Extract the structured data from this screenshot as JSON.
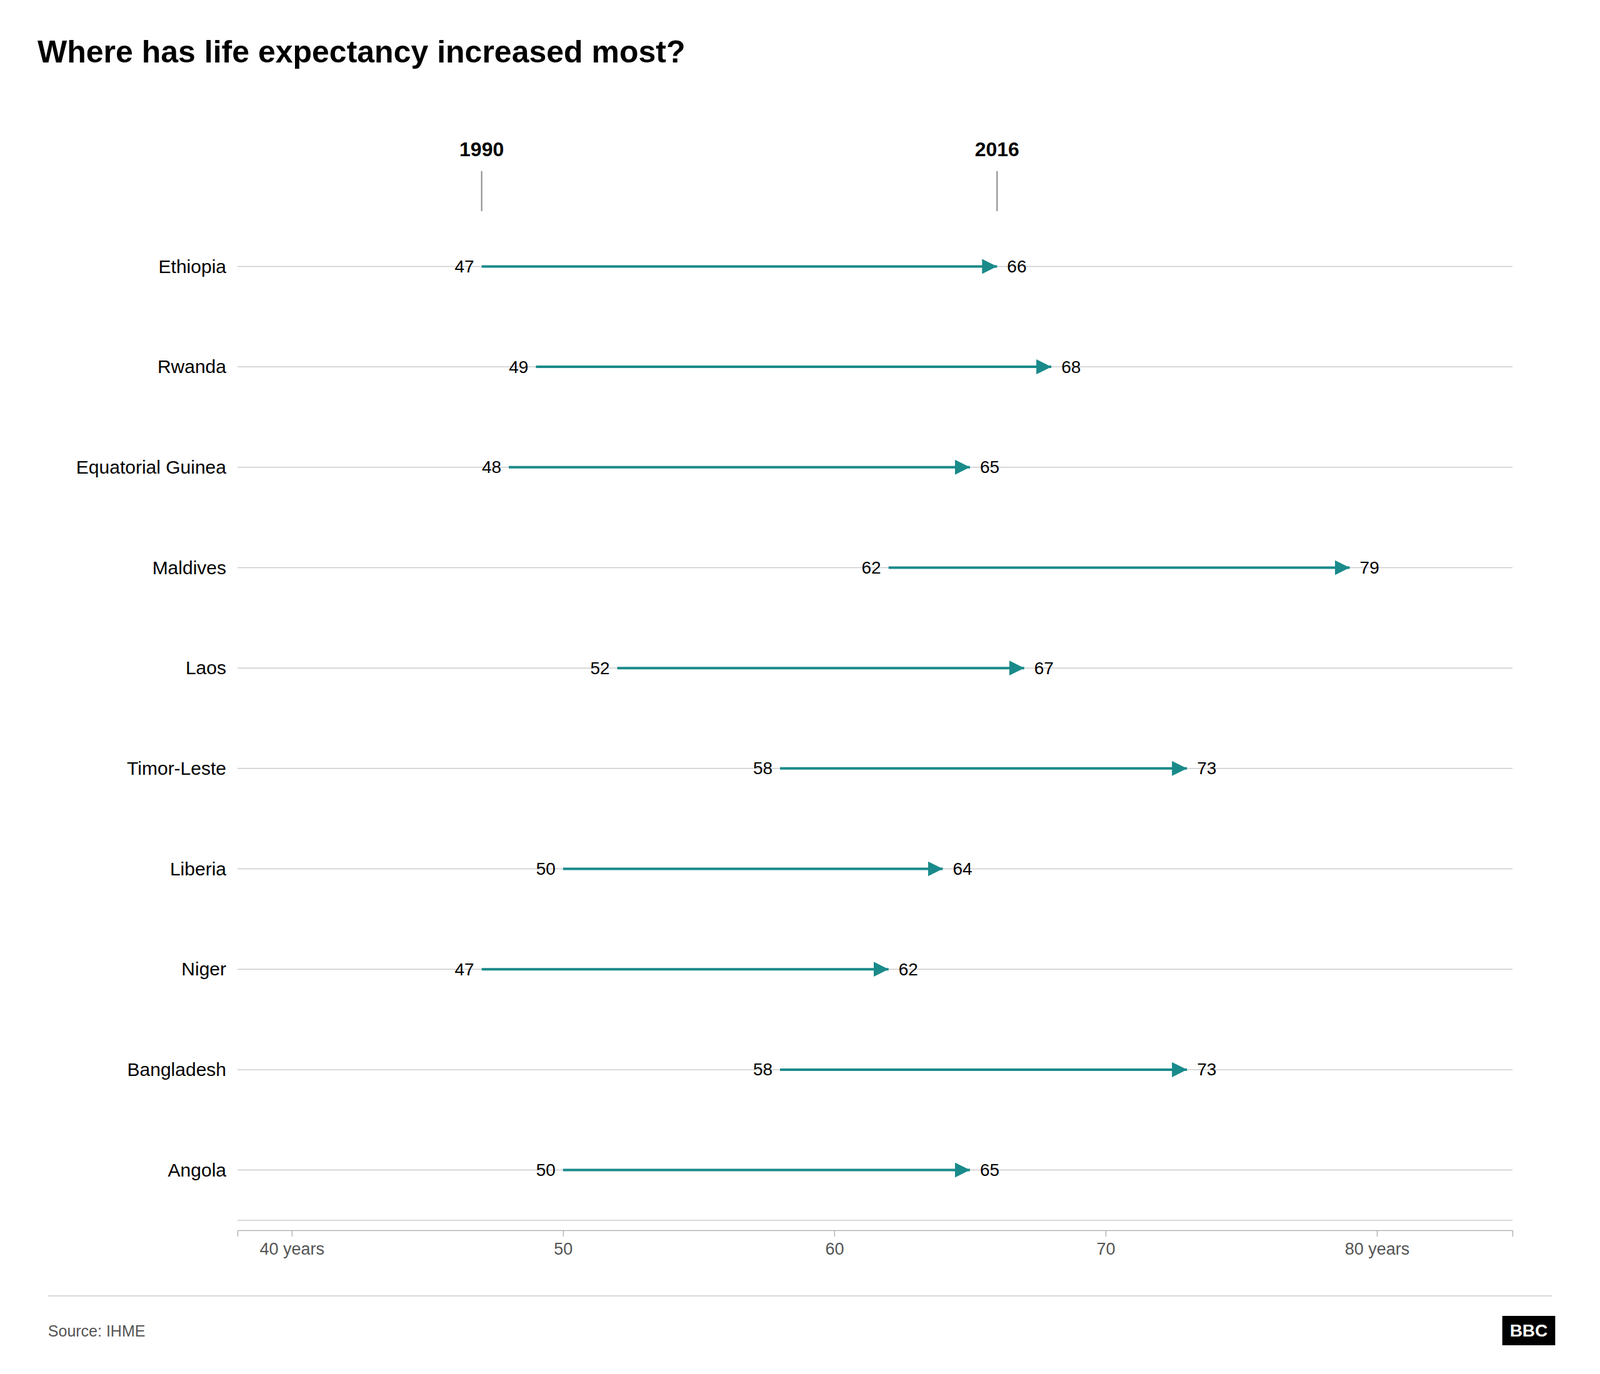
{
  "chart_data": {
    "type": "arrow",
    "title": "Where has life expectancy increased most?",
    "categories": [
      "Ethiopia",
      "Rwanda",
      "Equatorial Guinea",
      "Maldives",
      "Laos",
      "Timor-Leste",
      "Liberia",
      "Niger",
      "Bangladesh",
      "Angola"
    ],
    "series": [
      {
        "name": "1990",
        "values": [
          47,
          49,
          48,
          62,
          52,
          58,
          50,
          47,
          58,
          50
        ]
      },
      {
        "name": "2016",
        "values": [
          66,
          68,
          65,
          79,
          67,
          73,
          64,
          62,
          73,
          65
        ]
      }
    ],
    "color": "#1a8a8a",
    "orientation": "horizontal",
    "xlim": [
      38,
      85
    ],
    "xticks": [
      {
        "value": 40,
        "label": "40 years"
      },
      50,
      60,
      70,
      {
        "value": 80,
        "label": "80 years"
      }
    ],
    "grid": true,
    "data_labels": true,
    "annotations": [
      "Source: IHME",
      "BBC"
    ]
  }
}
